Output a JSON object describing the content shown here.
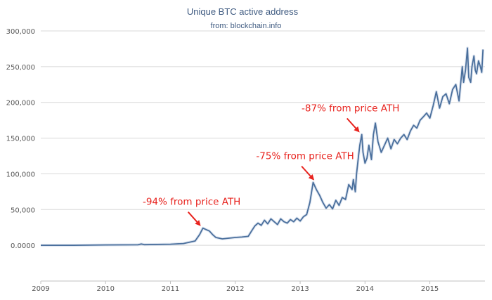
{
  "chart_data": {
    "type": "line",
    "title": "Unique BTC active address",
    "subtitle": "from: blockchain.info",
    "xlabel": "",
    "ylabel": "",
    "grid": true,
    "ylim": [
      -50000,
      300000
    ],
    "xlim": [
      2009.0,
      2015.85
    ],
    "y_ticks": [
      0,
      50000,
      100000,
      150000,
      200000,
      250000,
      300000
    ],
    "y_tick_labels": [
      "0.0000",
      "50,000",
      "100,000",
      "150,000",
      "200,000",
      "250,000",
      "300,000"
    ],
    "x_ticks": [
      2009,
      2010,
      2011,
      2012,
      2013,
      2014,
      2015
    ],
    "x_tick_labels": [
      "2009",
      "2010",
      "2011",
      "2012",
      "2013",
      "2014",
      "2015"
    ],
    "series": [
      {
        "name": "Unique BTC active address",
        "color": "#4a6f9c",
        "x": [
          2009.0,
          2009.5,
          2010.0,
          2010.5,
          2010.55,
          2010.6,
          2011.0,
          2011.2,
          2011.3,
          2011.38,
          2011.45,
          2011.5,
          2011.55,
          2011.6,
          2011.65,
          2011.7,
          2011.8,
          2011.9,
          2012.0,
          2012.1,
          2012.2,
          2012.25,
          2012.3,
          2012.35,
          2012.4,
          2012.45,
          2012.5,
          2012.55,
          2012.6,
          2012.65,
          2012.7,
          2012.75,
          2012.8,
          2012.85,
          2012.9,
          2012.95,
          2013.0,
          2013.05,
          2013.1,
          2013.15,
          2013.2,
          2013.25,
          2013.3,
          2013.35,
          2013.4,
          2013.45,
          2013.5,
          2013.55,
          2013.6,
          2013.65,
          2013.7,
          2013.75,
          2013.8,
          2013.82,
          2013.85,
          2013.87,
          2013.9,
          2013.92,
          2013.95,
          2013.97,
          2014.0,
          2014.03,
          2014.06,
          2014.1,
          2014.13,
          2014.16,
          2014.2,
          2014.25,
          2014.3,
          2014.35,
          2014.4,
          2014.45,
          2014.5,
          2014.55,
          2014.6,
          2014.65,
          2014.7,
          2014.75,
          2014.8,
          2014.85,
          2014.9,
          2014.95,
          2015.0,
          2015.05,
          2015.1,
          2015.15,
          2015.2,
          2015.25,
          2015.3,
          2015.35,
          2015.4,
          2015.45,
          2015.5,
          2015.52,
          2015.55,
          2015.58,
          2015.6,
          2015.63,
          2015.65,
          2015.68,
          2015.7,
          2015.72,
          2015.75,
          2015.78,
          2015.8,
          2015.82
        ],
        "values": [
          0,
          0,
          500,
          700,
          1800,
          900,
          1500,
          2500,
          4500,
          6000,
          15000,
          24000,
          22000,
          20000,
          15000,
          11000,
          9000,
          10000,
          11000,
          11500,
          12500,
          20000,
          27000,
          31000,
          28000,
          35000,
          30000,
          37000,
          33000,
          29000,
          37000,
          33000,
          31000,
          36000,
          33000,
          38000,
          34000,
          40000,
          43000,
          60000,
          88000,
          78000,
          70000,
          60000,
          52000,
          57000,
          51000,
          63000,
          56000,
          67000,
          64000,
          85000,
          78000,
          92000,
          75000,
          100000,
          125000,
          140000,
          155000,
          130000,
          115000,
          122000,
          140000,
          120000,
          155000,
          171000,
          145000,
          130000,
          140000,
          150000,
          135000,
          148000,
          142000,
          150000,
          155000,
          148000,
          160000,
          168000,
          164000,
          175000,
          180000,
          185000,
          178000,
          195000,
          215000,
          192000,
          208000,
          212000,
          198000,
          218000,
          225000,
          202000,
          250000,
          228000,
          245000,
          276000,
          235000,
          228000,
          250000,
          265000,
          245000,
          240000,
          258000,
          250000,
          242000,
          274000
        ]
      }
    ],
    "annotations": [
      {
        "text": "-94% from price ATH",
        "color": "#e8231e",
        "x": 2011.5,
        "y": 24000
      },
      {
        "text": "-75% from price ATH",
        "color": "#e8231e",
        "x": 2013.25,
        "y": 88000
      },
      {
        "text": "-87% from price ATH",
        "color": "#e8231e",
        "x": 2013.95,
        "y": 155000
      }
    ]
  }
}
